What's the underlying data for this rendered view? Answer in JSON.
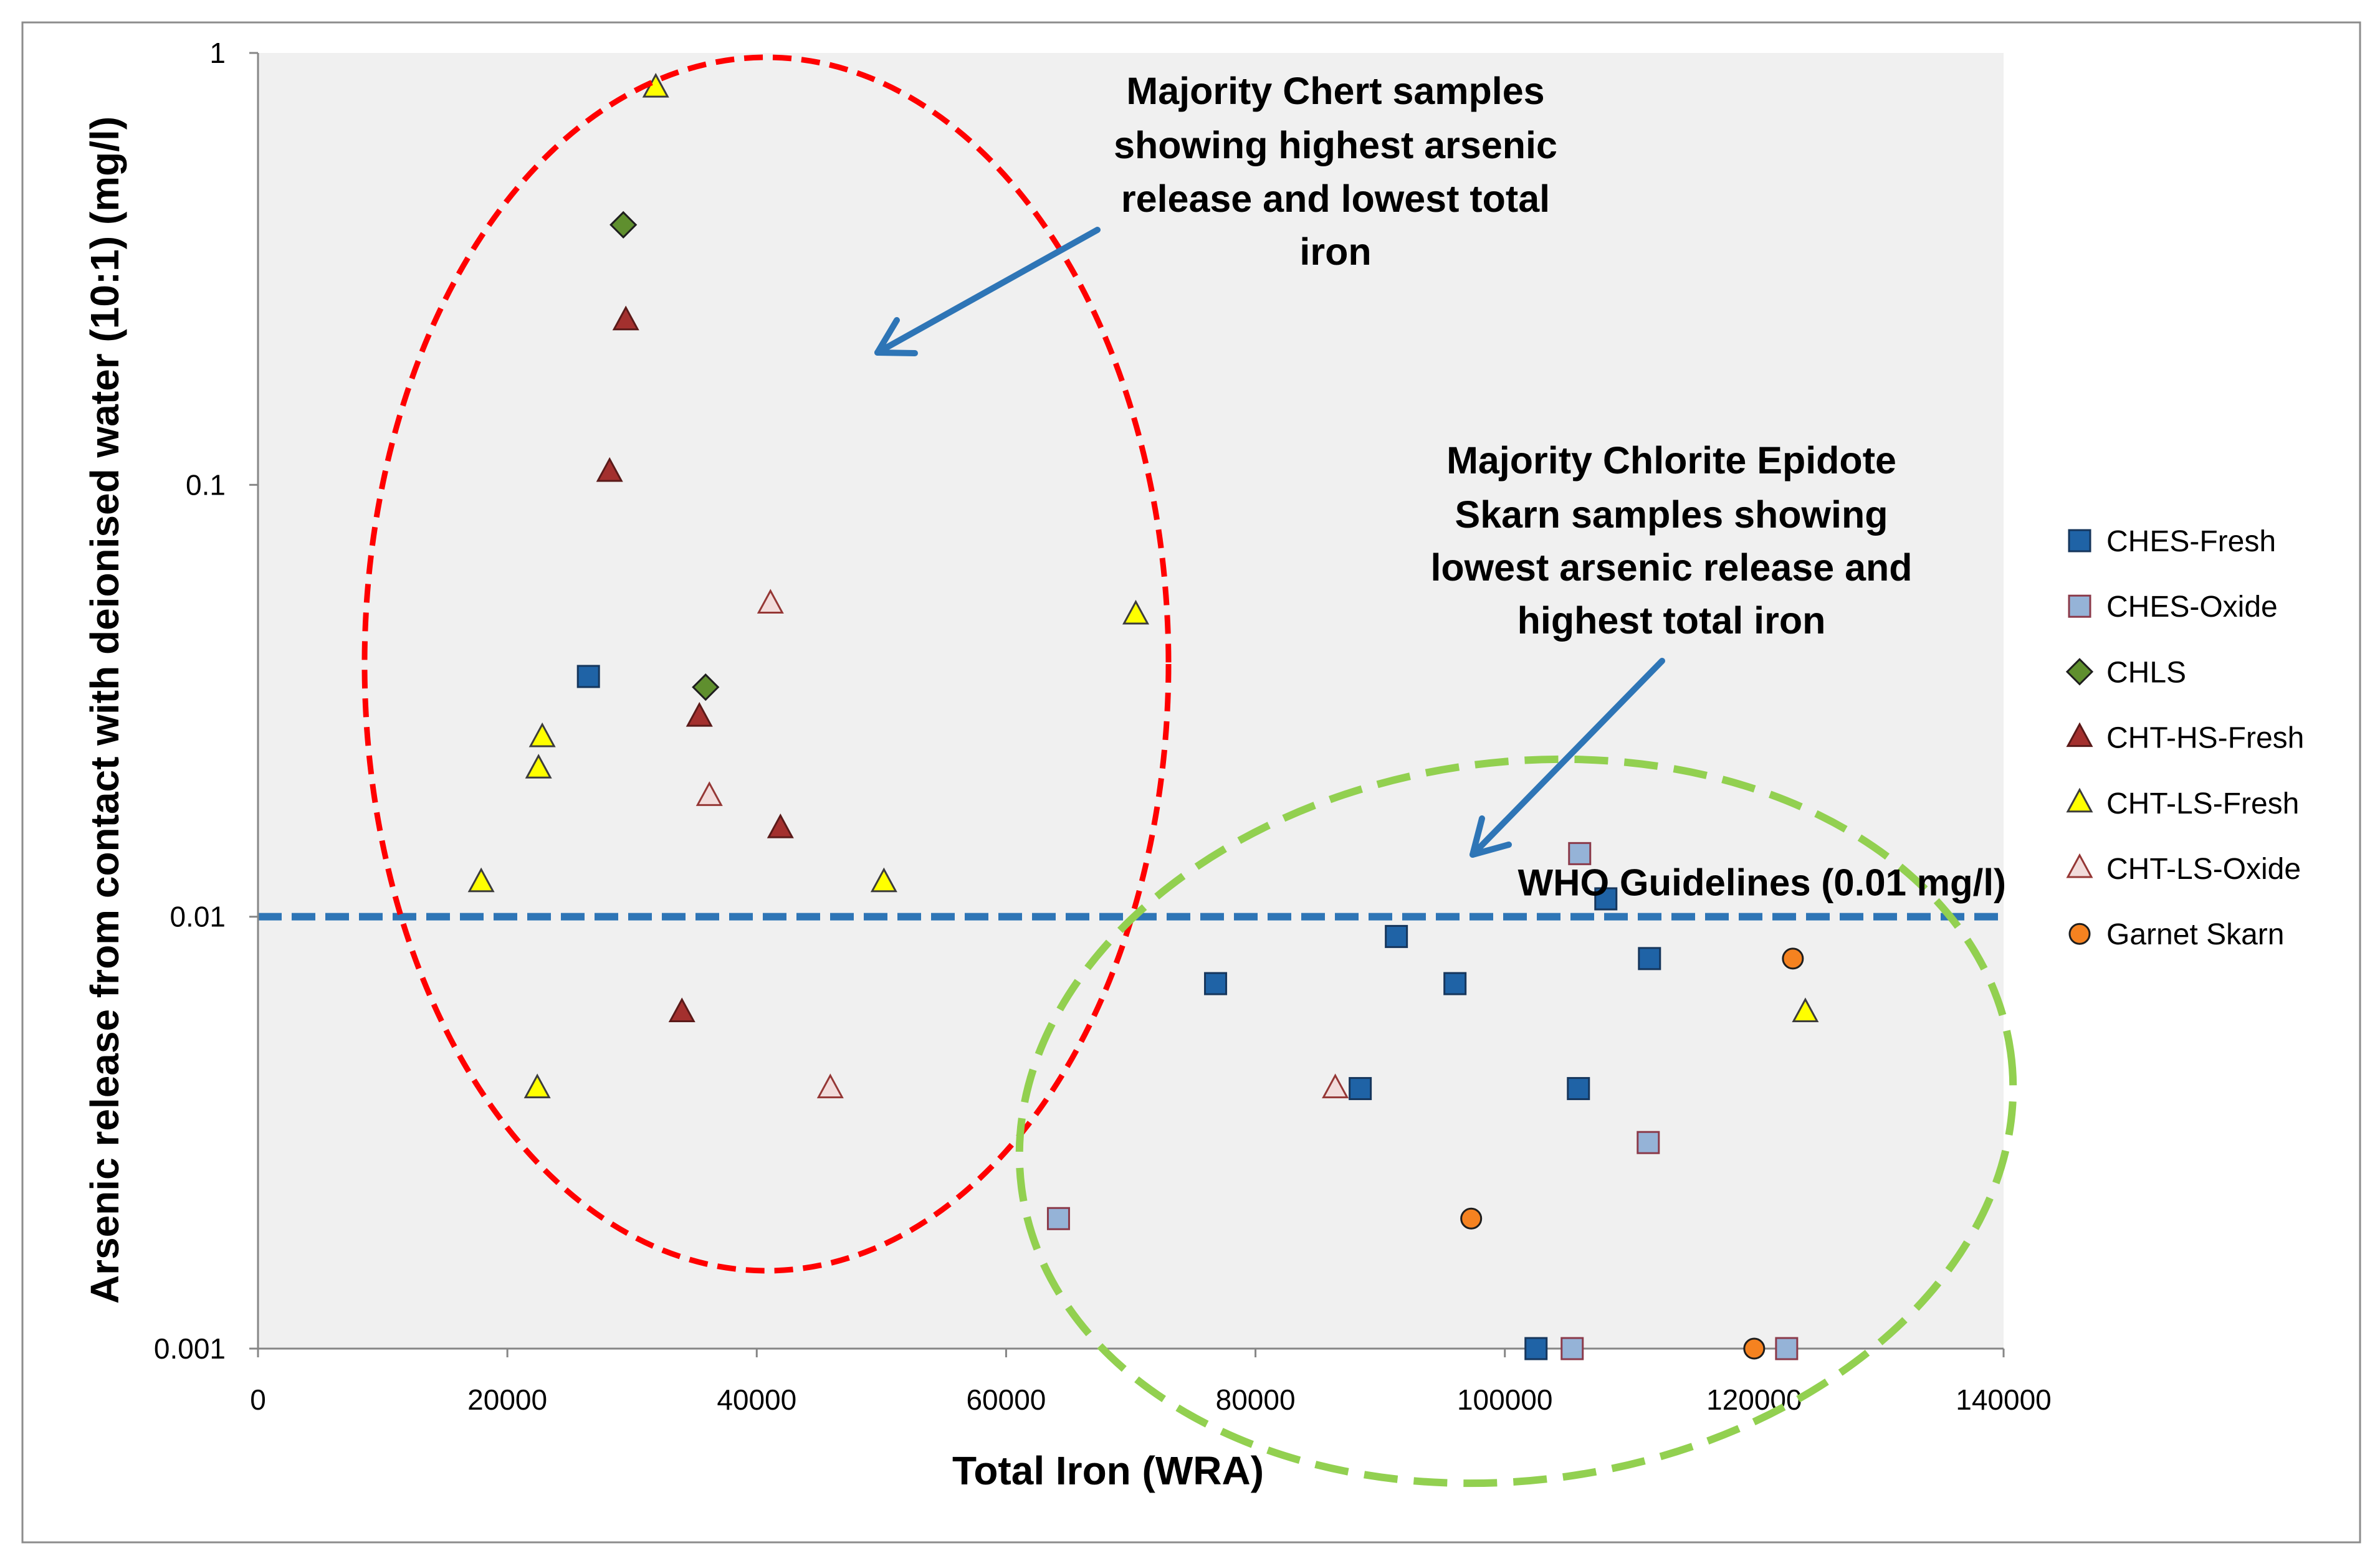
{
  "chart_data": {
    "type": "scatter",
    "xlabel": "Total Iron (WRA)",
    "ylabel": "Arsenic release from contact with deionised water (10:1) (mg/l)",
    "xlim": [
      0,
      140000
    ],
    "ylim": [
      0.001,
      1
    ],
    "y_log_scale": true,
    "x_ticks": [
      0,
      20000,
      40000,
      60000,
      80000,
      100000,
      120000,
      140000
    ],
    "y_ticks": [
      1,
      0.1,
      0.01,
      0.001
    ],
    "grid": false,
    "legend_position": "right",
    "series": [
      {
        "name": "CHES-Fresh",
        "marker": "square",
        "color": "#1f63a6",
        "edge": "#16365c",
        "points": [
          [
            26500,
            0.036
          ],
          [
            76800,
            0.007
          ],
          [
            88400,
            0.004
          ],
          [
            91300,
            0.009
          ],
          [
            96000,
            0.007
          ],
          [
            102500,
            0.001
          ],
          [
            105900,
            0.004
          ],
          [
            108100,
            0.011
          ],
          [
            111600,
            0.008
          ]
        ]
      },
      {
        "name": "CHES-Oxide",
        "marker": "square",
        "color": "#95b3d7",
        "edge": "#8b3a4a",
        "points": [
          [
            64200,
            0.002
          ],
          [
            105400,
            0.001
          ],
          [
            106000,
            0.014
          ],
          [
            111500,
            0.003
          ],
          [
            122600,
            0.001
          ]
        ]
      },
      {
        "name": "CHLS",
        "marker": "diamond",
        "color": "#5f8f2e",
        "edge": "#1e1e1e",
        "points": [
          [
            29300,
            0.4
          ],
          [
            35900,
            0.034
          ]
        ]
      },
      {
        "name": "CHT-HS-Fresh",
        "marker": "triangle",
        "color": "#a3302e",
        "edge": "#5a1a19",
        "points": [
          [
            29500,
            0.24
          ],
          [
            28200,
            0.107
          ],
          [
            35400,
            0.029
          ],
          [
            41900,
            0.016
          ],
          [
            34000,
            0.006
          ]
        ]
      },
      {
        "name": "CHT-LS-Fresh",
        "marker": "triangle",
        "color": "#ffff00",
        "edge": "#3c3c3c",
        "points": [
          [
            31900,
            0.83
          ],
          [
            22800,
            0.026
          ],
          [
            22500,
            0.022
          ],
          [
            17900,
            0.012
          ],
          [
            50200,
            0.012
          ],
          [
            70400,
            0.05
          ],
          [
            22400,
            0.004
          ],
          [
            124100,
            0.006
          ]
        ]
      },
      {
        "name": "CHT-LS-Oxide",
        "marker": "triangle",
        "color": "#f2dcdb",
        "edge": "#953735",
        "points": [
          [
            41100,
            0.053
          ],
          [
            36200,
            0.019
          ],
          [
            45900,
            0.004
          ],
          [
            86400,
            0.004
          ]
        ]
      },
      {
        "name": "Garnet Skarn",
        "marker": "circle",
        "color": "#f58220",
        "edge": "#1e1e1e",
        "points": [
          [
            97300,
            0.002
          ],
          [
            123100,
            0.008
          ],
          [
            120000,
            0.001
          ]
        ]
      }
    ],
    "reference_lines": [
      {
        "value": 0.01,
        "label": "WHO Guidelines (0.01 mg/l)"
      }
    ],
    "annotations": [
      {
        "lines": [
          "Majority Chert samples",
          "showing highest arsenic",
          "release and lowest total",
          "iron"
        ]
      },
      {
        "lines": [
          "Majority Chlorite Epidote",
          "Skarn samples showing",
          "lowest arsenic release and",
          "highest total iron"
        ]
      }
    ]
  },
  "colors": {
    "frame": "#8c8c8c",
    "plot_background": "#f0f0f0",
    "axis": "#868686",
    "reference_line": "#2e75b6",
    "reference_label": "#ff0000",
    "arrow": "#2e75b6",
    "chert_ellipse": "#ff0000",
    "skarn_ellipse": "#92d050"
  }
}
